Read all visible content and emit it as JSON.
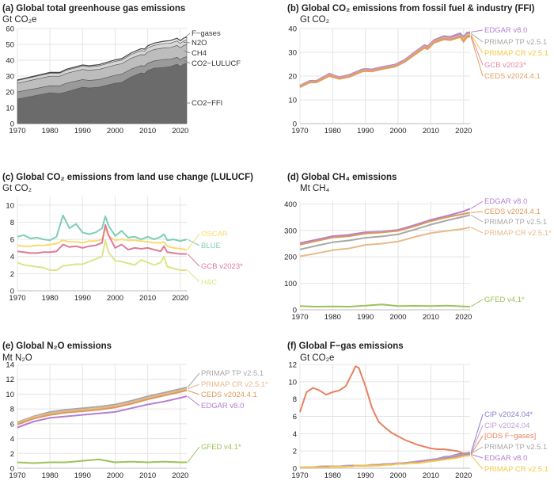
{
  "chart_data": [
    {
      "id": "a",
      "type": "area",
      "title": "(a) Global total greenhouse gas emissions",
      "unit": "Gt CO₂e",
      "x": [
        1970,
        1975,
        1980,
        1983,
        1985,
        1990,
        1992,
        1995,
        2000,
        2002,
        2005,
        2008,
        2009,
        2010,
        2012,
        2015,
        2017,
        2019,
        2020,
        2021,
        2022
      ],
      "xlim": [
        1970,
        2022
      ],
      "ylim": [
        0,
        60
      ],
      "xticks": [
        "1970",
        "1980",
        "1990",
        "2000",
        "2010",
        "2020"
      ],
      "yticks": [
        "0",
        "10",
        "20",
        "30",
        "40",
        "50",
        "60"
      ],
      "grid": true,
      "series": [
        {
          "name": "CO2−FFI",
          "color": "#6b6b6b",
          "values": [
            15.5,
            17.5,
            19.5,
            19.0,
            20.0,
            23.0,
            22.5,
            23.0,
            25.5,
            26.0,
            29.5,
            32.0,
            31.5,
            33.5,
            35.0,
            35.5,
            36.0,
            37.5,
            36.0,
            37.5,
            38.0
          ]
        },
        {
          "name": "CO2−LULUCF",
          "color": "#9a9a9a",
          "values": [
            4.5,
            4.4,
            4.4,
            4.8,
            5.5,
            4.8,
            4.8,
            4.8,
            5.0,
            5.2,
            5.0,
            4.6,
            4.8,
            4.6,
            4.6,
            5.0,
            4.6,
            4.4,
            4.3,
            4.2,
            4.2
          ]
        },
        {
          "name": "CH4",
          "color": "#bdbdbd",
          "values": [
            5.5,
            5.8,
            6.0,
            6.1,
            6.2,
            6.4,
            6.4,
            6.4,
            6.5,
            6.6,
            6.8,
            7.0,
            7.0,
            7.1,
            7.2,
            7.3,
            7.4,
            7.5,
            7.5,
            7.6,
            7.7
          ]
        },
        {
          "name": "N2O",
          "color": "#d6d6d6",
          "values": [
            1.7,
            1.8,
            1.9,
            1.9,
            2.0,
            2.1,
            2.1,
            2.2,
            2.3,
            2.3,
            2.4,
            2.5,
            2.5,
            2.6,
            2.6,
            2.7,
            2.8,
            2.8,
            2.8,
            2.8,
            2.9
          ]
        },
        {
          "name": "F−gases",
          "color": "#eaeaea",
          "values": [
            0.3,
            0.4,
            0.5,
            0.5,
            0.6,
            0.7,
            0.7,
            0.8,
            0.9,
            0.9,
            1.0,
            1.2,
            1.2,
            1.3,
            1.4,
            1.5,
            1.6,
            1.7,
            1.7,
            1.8,
            1.8
          ]
        }
      ]
    },
    {
      "id": "b",
      "type": "line",
      "title": "(b) Global CO₂ emissions from fossil fuel & industry (FFI)",
      "unit": "Gt CO₂",
      "x": [
        1970,
        1973,
        1975,
        1979,
        1982,
        1985,
        1989,
        1990,
        1992,
        1995,
        1999,
        2002,
        2005,
        2008,
        2009,
        2011,
        2014,
        2016,
        2019,
        2020,
        2021,
        2022
      ],
      "xlim": [
        1970,
        2022
      ],
      "ylim": [
        0,
        40
      ],
      "xticks": [
        "1970",
        "1980",
        "1990",
        "2000",
        "2010",
        "2020"
      ],
      "yticks": [
        "0",
        "10",
        "20",
        "30",
        "40"
      ],
      "grid": true,
      "series": [
        {
          "name": "EDGAR v8.0",
          "color": "#b57fd1",
          "values": [
            16.0,
            18.0,
            18.0,
            21.0,
            19.5,
            20.5,
            22.8,
            23.0,
            22.8,
            23.8,
            24.8,
            26.8,
            30.0,
            33.0,
            32.5,
            35.2,
            36.8,
            36.5,
            38.0,
            36.5,
            38.2,
            38.5
          ]
        },
        {
          "name": "PRIMAP TP v2.5.1",
          "color": "#a8a8a8",
          "values": [
            15.8,
            17.8,
            17.8,
            20.6,
            19.3,
            20.2,
            22.5,
            22.7,
            22.5,
            23.5,
            24.5,
            26.5,
            29.6,
            32.6,
            32.0,
            34.8,
            36.3,
            36.0,
            37.4,
            35.9,
            37.6,
            38.0
          ]
        },
        {
          "name": "PRIMAP CR v2.5.1",
          "color": "#f5c842",
          "values": [
            15.6,
            17.6,
            17.6,
            20.5,
            19.1,
            20.0,
            22.3,
            22.5,
            22.3,
            23.3,
            24.3,
            26.3,
            29.4,
            32.4,
            31.8,
            34.6,
            36.0,
            35.7,
            37.0,
            35.5,
            37.2,
            37.5
          ]
        },
        {
          "name": "GCB v2023*",
          "color": "#e58ba0",
          "values": [
            15.5,
            17.5,
            17.5,
            20.3,
            19.0,
            19.9,
            22.2,
            22.4,
            22.2,
            23.2,
            24.2,
            26.2,
            29.2,
            32.2,
            31.6,
            34.4,
            35.8,
            35.5,
            36.8,
            34.8,
            36.8,
            37.1
          ]
        },
        {
          "name": "CEDS v2024.4.1",
          "color": "#e0a060",
          "values": [
            15.3,
            17.3,
            17.3,
            20.0,
            18.8,
            19.6,
            21.9,
            22.1,
            21.9,
            22.9,
            23.9,
            25.9,
            28.9,
            31.8,
            31.3,
            34.0,
            35.4,
            35.1,
            36.4,
            34.4,
            36.3,
            36.6
          ]
        }
      ]
    },
    {
      "id": "c",
      "type": "line",
      "title": "(c) Global CO₂ emissions from land use change (LULUCF)",
      "unit": "Gt CO₂",
      "x": [
        1970,
        1972,
        1974,
        1976,
        1978,
        1980,
        1982,
        1984,
        1986,
        1988,
        1990,
        1992,
        1994,
        1996,
        1997,
        1998,
        2000,
        2002,
        2004,
        2006,
        2008,
        2010,
        2012,
        2014,
        2015,
        2016,
        2018,
        2020,
        2022
      ],
      "xlim": [
        1970,
        2022
      ],
      "ylim": [
        0,
        11
      ],
      "xticks": [
        "1970",
        "1980",
        "1990",
        "2000",
        "2010",
        "2020"
      ],
      "yticks": [
        "0",
        "2",
        "4",
        "6",
        "8",
        "10"
      ],
      "grid": true,
      "series": [
        {
          "name": "BLUE",
          "color": "#7ccfb8",
          "values": [
            6.3,
            6.5,
            6.1,
            6.2,
            6.0,
            5.9,
            6.3,
            8.8,
            7.3,
            7.8,
            6.8,
            6.6,
            6.8,
            7.3,
            8.7,
            7.6,
            6.4,
            7.0,
            6.2,
            6.3,
            6.0,
            6.3,
            6.0,
            6.3,
            6.6,
            5.9,
            6.0,
            5.8,
            6.0
          ]
        },
        {
          "name": "OSCAR",
          "color": "#f5dc70",
          "values": [
            5.3,
            5.2,
            5.2,
            5.3,
            5.3,
            5.4,
            5.5,
            5.9,
            5.7,
            5.7,
            5.6,
            5.8,
            5.8,
            6.0,
            7.3,
            6.4,
            5.9,
            6.0,
            5.9,
            5.9,
            5.8,
            5.7,
            5.6,
            5.6,
            5.7,
            5.2,
            5.0,
            4.9,
            4.8
          ]
        },
        {
          "name": "GCB v2023*",
          "color": "#e07a9a",
          "values": [
            4.6,
            4.5,
            4.4,
            4.4,
            4.5,
            4.5,
            4.6,
            5.4,
            5.1,
            5.2,
            5.0,
            5.2,
            5.3,
            5.6,
            7.7,
            6.5,
            5.0,
            5.4,
            4.8,
            5.0,
            4.9,
            5.0,
            4.8,
            4.6,
            5.2,
            4.5,
            4.4,
            4.3,
            4.3
          ]
        },
        {
          "name": "H&C",
          "color": "#dde48a",
          "values": [
            3.3,
            3.0,
            2.9,
            2.8,
            2.7,
            2.4,
            2.4,
            2.9,
            3.0,
            3.1,
            3.1,
            3.4,
            3.7,
            4.0,
            5.9,
            4.5,
            3.5,
            3.4,
            3.2,
            3.0,
            3.6,
            3.3,
            3.0,
            3.3,
            4.0,
            2.8,
            2.6,
            2.4,
            2.4
          ]
        }
      ]
    },
    {
      "id": "d",
      "type": "line",
      "title": "(d) Global CH₄ emissions",
      "unit": "Mt CH₄",
      "x": [
        1970,
        1975,
        1980,
        1985,
        1990,
        1995,
        2000,
        2005,
        2010,
        2015,
        2020,
        2022
      ],
      "xlim": [
        1970,
        2022
      ],
      "ylim": [
        0,
        410
      ],
      "xticks": [
        "1970",
        "1980",
        "1990",
        "2000",
        "2010",
        "2020"
      ],
      "yticks": [
        "0",
        "100",
        "200",
        "300",
        "400"
      ],
      "grid": true,
      "series": [
        {
          "name": "EDGAR v8.0",
          "color": "#b57fd1",
          "values": [
            252,
            265,
            278,
            283,
            293,
            295,
            302,
            320,
            340,
            355,
            372,
            382
          ]
        },
        {
          "name": "CEDS v2024.4.1",
          "color": "#d99a5a",
          "values": [
            246,
            260,
            273,
            278,
            288,
            292,
            298,
            315,
            335,
            350,
            362,
            367
          ]
        },
        {
          "name": "PRIMAP TP v2.5.1",
          "color": "#a8a8a8",
          "values": [
            228,
            242,
            255,
            262,
            272,
            277,
            285,
            303,
            322,
            338,
            352,
            358
          ]
        },
        {
          "name": "PRIMAP CR v2.5.1*",
          "color": "#e8b98a",
          "values": [
            202,
            213,
            225,
            232,
            245,
            250,
            258,
            275,
            290,
            298,
            306,
            312
          ]
        },
        {
          "name": "GFED v4.1*",
          "color": "#9dc25a",
          "values": [
            14,
            12,
            13,
            12,
            16,
            20,
            14,
            15,
            14,
            16,
            13,
            12
          ]
        }
      ]
    },
    {
      "id": "e",
      "type": "line",
      "title": "(e) Global N₂O emissions",
      "unit": "Mt N₂O",
      "x": [
        1970,
        1975,
        1980,
        1985,
        1990,
        1995,
        2000,
        2005,
        2010,
        2015,
        2020,
        2022
      ],
      "xlim": [
        1970,
        2022
      ],
      "ylim": [
        0,
        14
      ],
      "xticks": [
        "1970",
        "1980",
        "1990",
        "2000",
        "2010",
        "2020"
      ],
      "yticks": [
        "0",
        "2",
        "4",
        "6",
        "8",
        "10",
        "12",
        "14"
      ],
      "grid": true,
      "series": [
        {
          "name": "PRIMAP TP v2.5.1",
          "color": "#a8a8a8",
          "values": [
            6.2,
            7.0,
            7.6,
            7.9,
            8.1,
            8.3,
            8.6,
            9.1,
            9.7,
            10.2,
            10.7,
            10.9
          ]
        },
        {
          "name": "PRIMAP CR v2.5.1*",
          "color": "#e8b98a",
          "values": [
            6.1,
            6.9,
            7.4,
            7.7,
            7.9,
            8.1,
            8.4,
            8.9,
            9.5,
            10.0,
            10.5,
            10.7
          ]
        },
        {
          "name": "CEDS v2024.4.1",
          "color": "#d99a5a",
          "values": [
            5.9,
            6.7,
            7.2,
            7.5,
            7.7,
            7.9,
            8.2,
            8.7,
            9.3,
            9.8,
            10.3,
            10.5
          ]
        },
        {
          "name": "EDGAR v8.0",
          "color": "#b57fd1",
          "values": [
            5.5,
            6.3,
            6.8,
            7.0,
            7.2,
            7.4,
            7.6,
            8.1,
            8.6,
            9.0,
            9.5,
            9.7
          ]
        },
        {
          "name": "GFED v4.1*",
          "color": "#9dc25a",
          "values": [
            0.8,
            0.7,
            0.8,
            0.8,
            1.0,
            1.2,
            0.8,
            0.9,
            0.8,
            0.9,
            0.8,
            0.8
          ]
        }
      ]
    },
    {
      "id": "f",
      "type": "line",
      "title": "(f) Global F−gas emissions",
      "unit": "Gt CO₂e",
      "x": [
        1970,
        1972,
        1974,
        1976,
        1978,
        1980,
        1982,
        1984,
        1986,
        1987,
        1988,
        1990,
        1992,
        1994,
        1996,
        1998,
        2000,
        2002,
        2004,
        2006,
        2008,
        2010,
        2012,
        2014,
        2016,
        2018,
        2020,
        2022
      ],
      "xlim": [
        1970,
        2022
      ],
      "ylim": [
        0,
        12
      ],
      "xticks": [
        "1970",
        "1980",
        "1990",
        "2000",
        "2010",
        "2020"
      ],
      "yticks": [
        "0",
        "2",
        "4",
        "6",
        "8",
        "10",
        "12"
      ],
      "grid": true,
      "series": [
        {
          "name": "CIP v2024.04*",
          "color": "#8a7fd1",
          "values": [
            0.1,
            0.1,
            0.1,
            0.2,
            0.2,
            0.2,
            0.2,
            0.3,
            0.3,
            0.3,
            0.3,
            0.3,
            0.4,
            0.4,
            0.5,
            0.5,
            0.6,
            0.6,
            0.7,
            0.8,
            0.9,
            1.0,
            1.1,
            1.3,
            1.4,
            1.6,
            1.7,
            1.8
          ]
        },
        {
          "name": "CIP v2024.04",
          "color": "#c4a0d0",
          "values": [
            0.1,
            0.1,
            0.1,
            0.2,
            0.2,
            0.2,
            0.2,
            0.3,
            0.3,
            0.3,
            0.3,
            0.3,
            0.4,
            0.4,
            0.5,
            0.5,
            0.6,
            0.6,
            0.7,
            0.8,
            0.9,
            1.0,
            1.1,
            1.2,
            1.4,
            1.5,
            1.6,
            1.7
          ]
        },
        {
          "name": "[ODS F−gases]",
          "color": "#e88060",
          "values": [
            6.5,
            8.8,
            9.3,
            9.0,
            8.5,
            8.8,
            9.0,
            9.5,
            11.0,
            11.8,
            11.6,
            9.5,
            7.0,
            5.4,
            4.7,
            4.1,
            3.7,
            3.3,
            3.0,
            2.7,
            2.5,
            2.3,
            2.2,
            2.2,
            2.1,
            2.0,
            1.7,
            1.6
          ]
        },
        {
          "name": "PRIMAP TP v2.5.1",
          "color": "#a8a8a8",
          "values": [
            0.1,
            0.1,
            0.1,
            0.1,
            0.2,
            0.2,
            0.2,
            0.2,
            0.3,
            0.3,
            0.3,
            0.3,
            0.3,
            0.4,
            0.4,
            0.5,
            0.5,
            0.6,
            0.7,
            0.7,
            0.8,
            0.9,
            1.0,
            1.2,
            1.3,
            1.4,
            1.6,
            1.7
          ]
        },
        {
          "name": "EDGAR v8.0",
          "color": "#b57fd1",
          "values": [
            0.1,
            0.1,
            0.1,
            0.1,
            0.2,
            0.2,
            0.2,
            0.2,
            0.3,
            0.3,
            0.3,
            0.3,
            0.3,
            0.4,
            0.4,
            0.5,
            0.5,
            0.6,
            0.6,
            0.7,
            0.8,
            0.9,
            1.0,
            1.1,
            1.2,
            1.3,
            1.5,
            1.6
          ]
        },
        {
          "name": "PRIMAP CR v2.5.1",
          "color": "#f5c842",
          "values": [
            0.1,
            0.1,
            0.1,
            0.1,
            0.1,
            0.2,
            0.2,
            0.2,
            0.2,
            0.3,
            0.3,
            0.3,
            0.3,
            0.3,
            0.4,
            0.4,
            0.5,
            0.5,
            0.6,
            0.6,
            0.7,
            0.8,
            0.9,
            1.0,
            1.1,
            1.2,
            1.4,
            1.5
          ]
        }
      ]
    }
  ]
}
